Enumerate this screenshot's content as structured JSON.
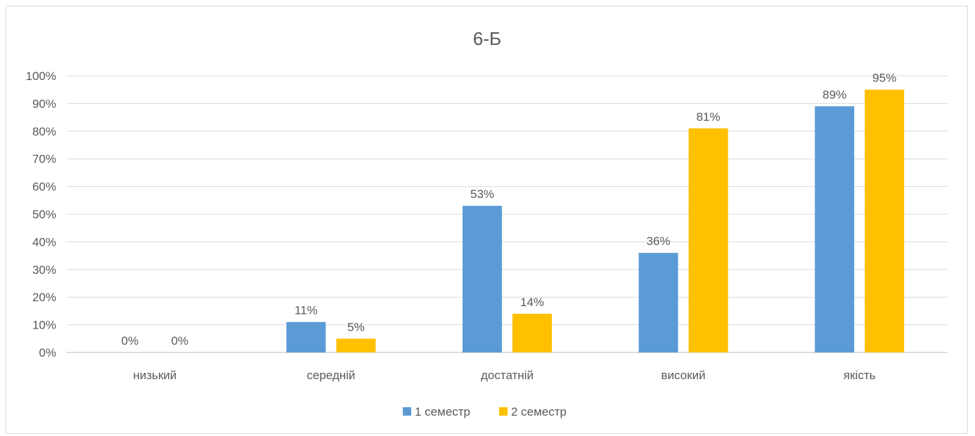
{
  "chart_data": {
    "type": "bar",
    "title": "6-Б",
    "categories": [
      "низький",
      "середній",
      "достатній",
      "високий",
      "якість"
    ],
    "series": [
      {
        "name": "1 семестр",
        "color": "#5b9bd5",
        "values": [
          0,
          11,
          53,
          36,
          89
        ],
        "labels": [
          "0%",
          "11%",
          "53%",
          "36%",
          "89%"
        ]
      },
      {
        "name": "2 семестр",
        "color": "#ffc000",
        "values": [
          0,
          5,
          14,
          81,
          95
        ],
        "labels": [
          "0%",
          "5%",
          "14%",
          "81%",
          "95%"
        ]
      }
    ],
    "yticks": [
      "0%",
      "10%",
      "20%",
      "30%",
      "40%",
      "50%",
      "60%",
      "70%",
      "80%",
      "90%",
      "100%"
    ],
    "ylim": [
      0,
      100
    ],
    "grid": true,
    "legend_position": "bottom"
  }
}
